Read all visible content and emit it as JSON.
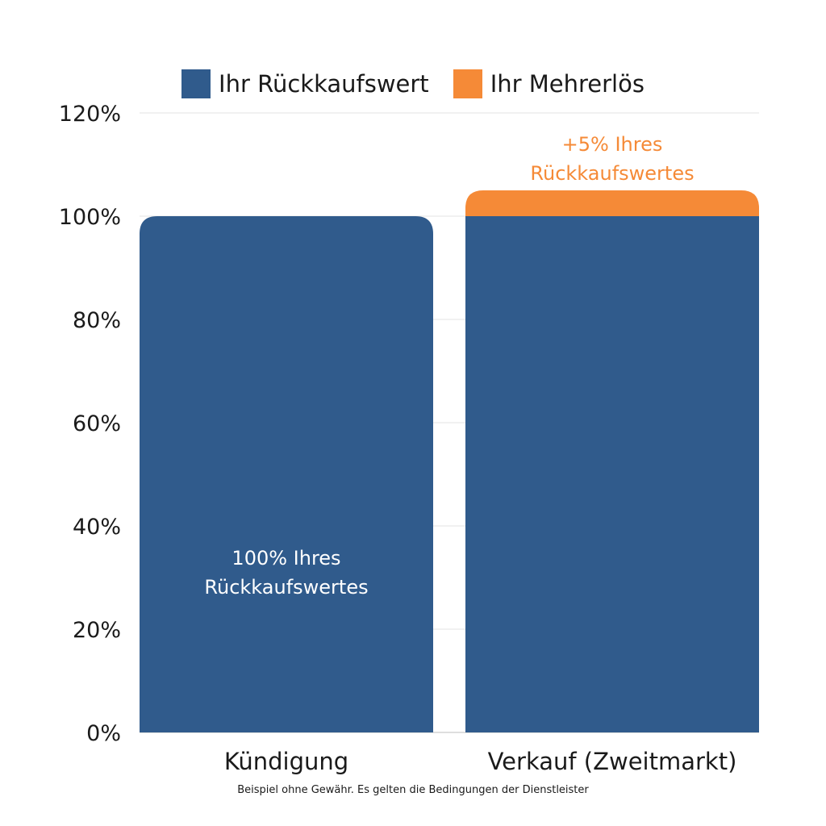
{
  "chart_data": {
    "type": "bar",
    "stacked": true,
    "categories": [
      "Kündigung",
      "Verkauf (Zweitmarkt)"
    ],
    "series": [
      {
        "name": "Ihr Rückkaufswert",
        "values": [
          100,
          100
        ],
        "color": "#305b8c"
      },
      {
        "name": "Ihr Mehrerlös",
        "values": [
          0,
          5
        ],
        "color": "#f58a37"
      }
    ],
    "y_ticks": [
      "0%",
      "20%",
      "40%",
      "60%",
      "80%",
      "100%",
      "120%"
    ],
    "ylim": [
      0,
      120
    ],
    "grid": true,
    "legend_position": "top-center",
    "annotations": [
      {
        "category": "Kündigung",
        "lines": [
          "100% Ihres",
          "Rückkaufswertes"
        ],
        "color": "#ffffff"
      },
      {
        "category": "Verkauf (Zweitmarkt)",
        "lines": [
          "+5% Ihres",
          "Rückkaufswertes"
        ],
        "color": "#f58a37"
      }
    ],
    "footnote": "Beispiel ohne Gewähr. Es gelten die Bedingungen der Dienstleister"
  }
}
